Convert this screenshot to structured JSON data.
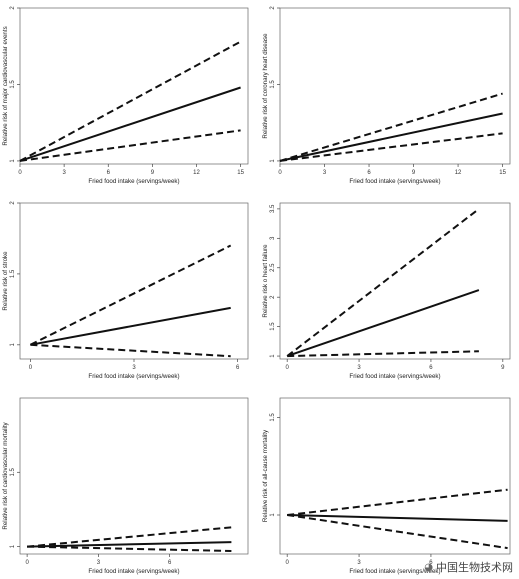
{
  "watermark": {
    "text": "中国生物技术网",
    "icon": "wechat-bubble-icon"
  },
  "colors": {
    "line": "#111111",
    "frame": "#666666",
    "background": "#ffffff"
  },
  "chart_data": [
    {
      "type": "line",
      "xlabel": "Fried food intake (servings/week)",
      "ylabel": "Relative risk of major cardiovascular events",
      "xlim": [
        0,
        15.5
      ],
      "ylim": [
        0.98,
        2
      ],
      "xticks": [
        0,
        3,
        6,
        9,
        12,
        15
      ],
      "yticks": [
        1,
        1.5,
        2
      ],
      "xticklabels": [
        "0",
        "3",
        "6",
        "9",
        "12",
        "15"
      ],
      "yticklabels": [
        "1",
        "1.5",
        "2"
      ],
      "series": [
        {
          "role": "upper-ci",
          "x": [
            0,
            15
          ],
          "y": [
            1.0,
            1.78
          ]
        },
        {
          "role": "estimate",
          "x": [
            0,
            15
          ],
          "y": [
            1.0,
            1.48
          ]
        },
        {
          "role": "lower-ci",
          "x": [
            0,
            15
          ],
          "y": [
            1.0,
            1.2
          ]
        }
      ]
    },
    {
      "type": "line",
      "xlabel": "Fried food intake (servings/week)",
      "ylabel": "Relative risk of coronary heart disease",
      "xlim": [
        0,
        15.5
      ],
      "ylim": [
        0.98,
        2
      ],
      "xticks": [
        0,
        3,
        6,
        9,
        12,
        15
      ],
      "yticks": [
        1,
        1.5,
        2
      ],
      "xticklabels": [
        "0",
        "3",
        "6",
        "9",
        "12",
        "15"
      ],
      "yticklabels": [
        "1",
        "1.5",
        "2"
      ],
      "series": [
        {
          "role": "upper-ci",
          "x": [
            0,
            15
          ],
          "y": [
            1.0,
            1.44
          ]
        },
        {
          "role": "estimate",
          "x": [
            0,
            15
          ],
          "y": [
            1.0,
            1.31
          ]
        },
        {
          "role": "lower-ci",
          "x": [
            0,
            15
          ],
          "y": [
            1.0,
            1.18
          ]
        }
      ]
    },
    {
      "type": "line",
      "xlabel": "Fried food intake (servings/week)",
      "ylabel": "Relative risk of stroke",
      "xlim": [
        -0.3,
        6.3
      ],
      "ylim": [
        0.9,
        2
      ],
      "xticks": [
        0,
        3,
        6
      ],
      "yticks": [
        1,
        1.5,
        2
      ],
      "xticklabels": [
        "0",
        "3",
        "6"
      ],
      "yticklabels": [
        "1",
        "1.5",
        "2"
      ],
      "series": [
        {
          "role": "upper-ci",
          "x": [
            0,
            5.8
          ],
          "y": [
            1.0,
            1.7
          ]
        },
        {
          "role": "estimate",
          "x": [
            0,
            5.8
          ],
          "y": [
            1.0,
            1.26
          ]
        },
        {
          "role": "lower-ci",
          "x": [
            0,
            5.8
          ],
          "y": [
            1.0,
            0.92
          ]
        }
      ]
    },
    {
      "type": "line",
      "xlabel": "Fried food intake (servings/week)",
      "ylabel": "Relative risk o heart failure",
      "xlim": [
        -0.3,
        9.3
      ],
      "ylim": [
        0.95,
        3.6
      ],
      "xticks": [
        0,
        3,
        6,
        9
      ],
      "yticks": [
        1,
        1.5,
        2,
        2.5,
        3,
        3.5
      ],
      "xticklabels": [
        "0",
        "3",
        "6",
        "9"
      ],
      "yticklabels": [
        "1",
        "1.5",
        "2",
        "2.5",
        "3",
        "3.5"
      ],
      "series": [
        {
          "role": "upper-ci",
          "x": [
            0,
            8
          ],
          "y": [
            1.0,
            3.5
          ]
        },
        {
          "role": "estimate",
          "x": [
            0,
            8
          ],
          "y": [
            1.0,
            2.12
          ]
        },
        {
          "role": "lower-ci",
          "x": [
            0,
            8
          ],
          "y": [
            1.0,
            1.08
          ]
        }
      ]
    },
    {
      "type": "line",
      "xlabel": "Fried food intake (servings/week)",
      "ylabel": "Relative risk of cardiovascular mortality",
      "xlim": [
        -0.3,
        9.3
      ],
      "ylim": [
        0.95,
        2
      ],
      "xticks": [
        0,
        3,
        6
      ],
      "yticks": [
        1,
        1.5
      ],
      "xticklabels": [
        "0",
        "3",
        "6"
      ],
      "yticklabels": [
        "1",
        "1.5"
      ],
      "series": [
        {
          "role": "upper-ci",
          "x": [
            0,
            8.6
          ],
          "y": [
            1.0,
            1.13
          ]
        },
        {
          "role": "estimate",
          "x": [
            0,
            8.6
          ],
          "y": [
            1.0,
            1.03
          ]
        },
        {
          "role": "lower-ci",
          "x": [
            0,
            8.6
          ],
          "y": [
            1.0,
            0.97
          ]
        }
      ]
    },
    {
      "type": "line",
      "xlabel": "Fried food intake (servings/week)",
      "ylabel": "Relative risk of all-cause mortality",
      "xlim": [
        -0.3,
        9.3
      ],
      "ylim": [
        0.8,
        1.6
      ],
      "xticks": [
        0,
        3,
        6
      ],
      "yticks": [
        1,
        1.5
      ],
      "xticklabels": [
        "0",
        "3",
        "6"
      ],
      "yticklabels": [
        "1",
        "1.5"
      ],
      "series": [
        {
          "role": "upper-ci",
          "x": [
            0,
            9.2
          ],
          "y": [
            1.0,
            1.13
          ]
        },
        {
          "role": "estimate",
          "x": [
            0,
            9.2
          ],
          "y": [
            1.0,
            0.97
          ]
        },
        {
          "role": "lower-ci",
          "x": [
            0,
            9.2
          ],
          "y": [
            1.0,
            0.83
          ]
        }
      ]
    }
  ]
}
